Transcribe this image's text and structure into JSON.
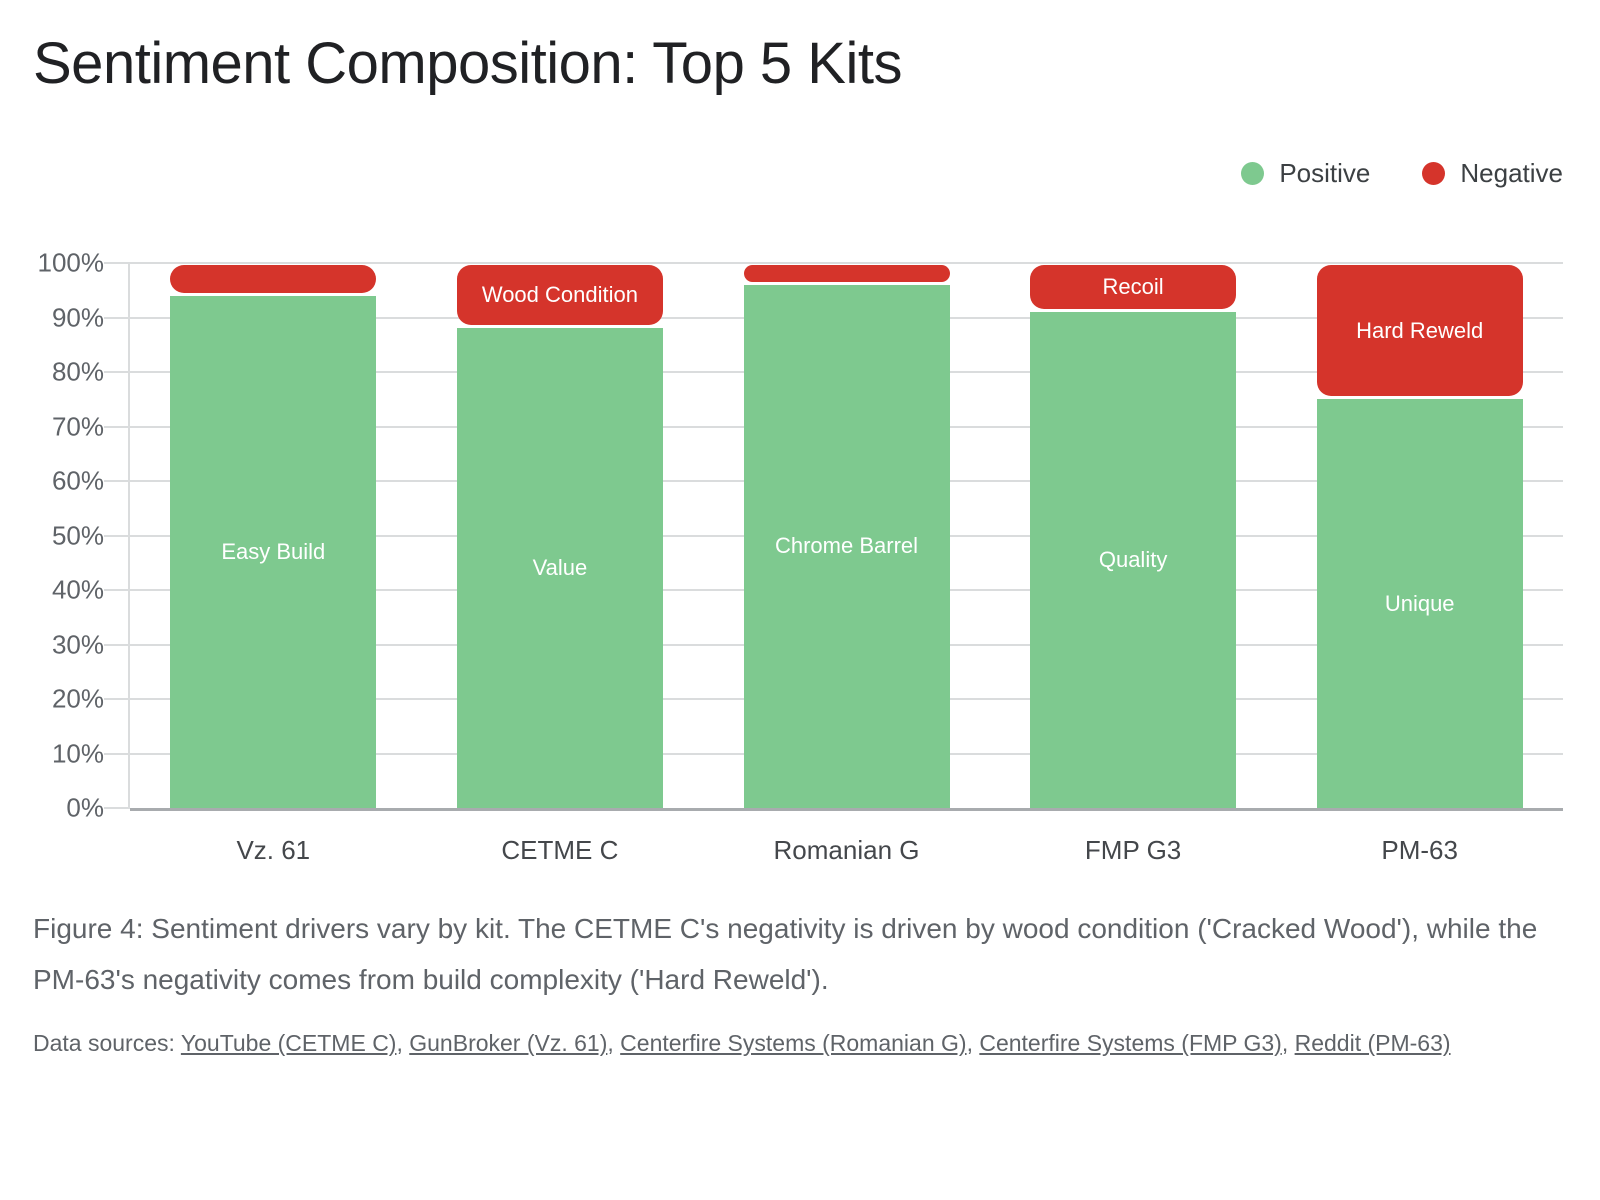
{
  "title": "Sentiment Composition: Top 5 Kits",
  "legend": {
    "items": [
      {
        "label": "Positive",
        "color": "#7ec98f"
      },
      {
        "label": "Negative",
        "color": "#d5342b"
      }
    ]
  },
  "chart_data": {
    "type": "bar",
    "stacked": true,
    "title": "Sentiment Composition: Top 5 Kits",
    "categories": [
      "Vz. 61",
      "CETME C",
      "Romanian G",
      "FMP G3",
      "PM-63"
    ],
    "series": [
      {
        "name": "Positive",
        "color": "#7ec98f",
        "values": [
          94,
          88,
          96,
          91,
          75
        ],
        "segment_labels": [
          "Easy Build",
          "Value",
          "Chrome Barrel",
          "Quality",
          "Unique"
        ]
      },
      {
        "name": "Negative",
        "color": "#d5342b",
        "values": [
          6,
          12,
          4,
          9,
          25
        ],
        "segment_labels": [
          "",
          "Wood Condition",
          "",
          "Recoil",
          "Hard Reweld"
        ]
      }
    ],
    "xlabel": "",
    "ylabel": "",
    "ylim": [
      0,
      100
    ],
    "ytick_labels": [
      "0%",
      "10%",
      "20%",
      "30%",
      "40%",
      "50%",
      "60%",
      "70%",
      "80%",
      "90%",
      "100%"
    ],
    "grid": true,
    "legend_position": "top-right"
  },
  "caption": "Figure 4: Sentiment drivers vary by kit. The CETME C's negativity is driven by wood condition ('Cracked Wood'), while the PM-63's negativity comes from build complexity ('Hard Reweld').",
  "sources": {
    "prefix": "Data sources: ",
    "separator": ", ",
    "links": [
      "YouTube (CETME C)",
      "GunBroker (Vz. 61)",
      "Centerfire Systems (Romanian G)",
      "Centerfire Systems (FMP G3)",
      "Reddit (PM-63)"
    ]
  }
}
